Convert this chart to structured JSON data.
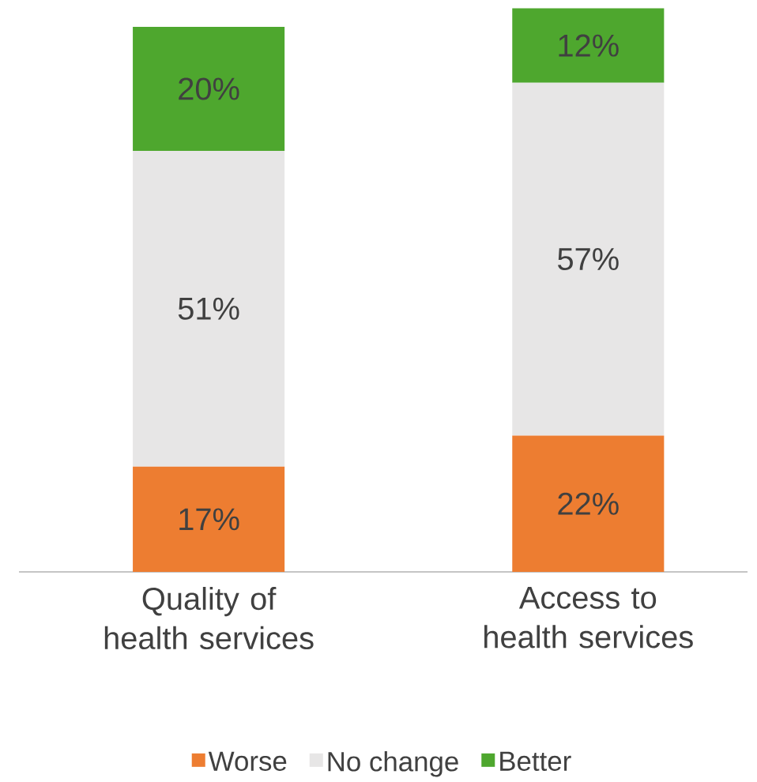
{
  "chart_data": {
    "type": "bar",
    "stacked": true,
    "categories": [
      "Quality of health services",
      "Access to health services"
    ],
    "series": [
      {
        "name": "Worse",
        "color": "#ed7d31",
        "values": [
          17,
          22
        ],
        "value_labels": [
          "17%",
          "22%"
        ]
      },
      {
        "name": "No change",
        "color": "#e7e6e6",
        "values": [
          51,
          57
        ],
        "value_labels": [
          "51%",
          "57%"
        ]
      },
      {
        "name": "Better",
        "color": "#4ea72e",
        "values": [
          20,
          12
        ],
        "value_labels": [
          "20%",
          "12%"
        ]
      }
    ],
    "legend": "bottom"
  }
}
